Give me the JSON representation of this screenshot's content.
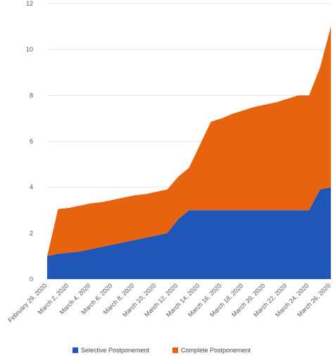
{
  "chart_data": {
    "type": "area",
    "stacked": true,
    "title": "",
    "xlabel": "",
    "ylabel": "",
    "ylim": [
      0,
      12
    ],
    "yticks": [
      0,
      2,
      4,
      6,
      8,
      10,
      12
    ],
    "grid": "horizontal",
    "legend_position": "bottom",
    "x": [
      "2020-02-29",
      "2020-03-01",
      "2020-03-02",
      "2020-03-03",
      "2020-03-04",
      "2020-03-05",
      "2020-03-06",
      "2020-03-07",
      "2020-03-08",
      "2020-03-09",
      "2020-03-10",
      "2020-03-11",
      "2020-03-12",
      "2020-03-13",
      "2020-03-14",
      "2020-03-15",
      "2020-03-16",
      "2020-03-17",
      "2020-03-18",
      "2020-03-19",
      "2020-03-20",
      "2020-03-21",
      "2020-03-22",
      "2020-03-23",
      "2020-03-24",
      "2020-03-25",
      "2020-03-26"
    ],
    "x_tick_labels": [
      "February 29, 2020",
      "March 2, 2020",
      "March 4, 2020",
      "March 6, 2020",
      "March 8, 2020",
      "March 10, 2020",
      "March 12, 2020",
      "March 14, 2020",
      "March 16, 2020",
      "March 18, 2020",
      "March 20, 2020",
      "March 22, 2020",
      "March 24, 2020",
      "March 26, 2020"
    ],
    "series": [
      {
        "name": "Selective Postponement",
        "color": "#1f56b8",
        "values": [
          1.0,
          1.1,
          1.15,
          1.2,
          1.3,
          1.4,
          1.5,
          1.6,
          1.7,
          1.8,
          1.9,
          2.0,
          2.6,
          3.0,
          3.0,
          3.0,
          3.0,
          3.0,
          3.0,
          3.0,
          3.0,
          3.0,
          3.0,
          3.0,
          3.0,
          3.9,
          4.0
        ]
      },
      {
        "name": "Complete Postponement",
        "color": "#e8630f",
        "values": [
          0.0,
          1.95,
          1.95,
          2.0,
          2.0,
          1.95,
          1.95,
          1.95,
          1.95,
          1.9,
          1.9,
          1.9,
          1.85,
          1.85,
          2.85,
          3.85,
          4.0,
          4.2,
          4.35,
          4.5,
          4.6,
          4.7,
          4.85,
          5.0,
          5.0,
          5.3,
          7.0
        ]
      }
    ]
  }
}
